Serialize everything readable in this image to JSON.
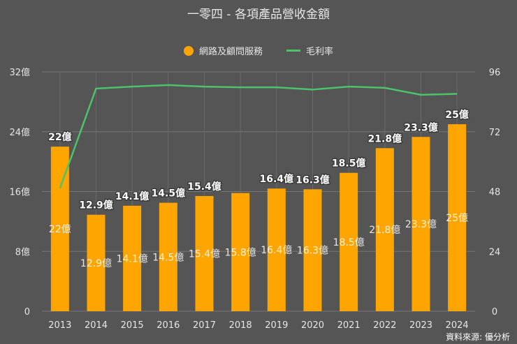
{
  "chart_data": {
    "type": "bar+line",
    "title": "一零四 - 各項產品營收金額",
    "categories": [
      "2013",
      "2014",
      "2015",
      "2016",
      "2017",
      "2018",
      "2019",
      "2020",
      "2021",
      "2022",
      "2023",
      "2024"
    ],
    "series": [
      {
        "name": "網路及顧問服務",
        "type": "bar",
        "axis": "left",
        "color": "#FFA500",
        "values": [
          22,
          12.9,
          14.1,
          14.5,
          15.4,
          15.8,
          16.4,
          16.3,
          18.5,
          21.8,
          23.3,
          25
        ],
        "labels_top": [
          "22億",
          "12.9億",
          "14.1億",
          "14.5億",
          "15.4億",
          "",
          "16.4億",
          "16.3億",
          "18.5億",
          "21.8億",
          "23.3億",
          "25億"
        ],
        "labels_inside": [
          "22億",
          "12.9億",
          "14.1億",
          "14.5億",
          "15.4億",
          "15.8億",
          "16.4億",
          "16.3億",
          "18.5億",
          "21.8億",
          "23.3億",
          "25億"
        ]
      },
      {
        "name": "毛利率",
        "type": "line",
        "axis": "right",
        "color": "#4CC36A",
        "values": [
          49.3,
          89.3,
          90.1,
          90.7,
          90.1,
          89.8,
          89.8,
          88.9,
          90.1,
          89.6,
          86.8,
          87.2
        ]
      }
    ],
    "left_axis": {
      "range": [
        0,
        32
      ],
      "ticks": [
        "0",
        "8億",
        "16億",
        "24億",
        "32億"
      ]
    },
    "right_axis": {
      "range": [
        0,
        96
      ],
      "ticks": [
        "0",
        "24",
        "48",
        "72",
        "96"
      ]
    },
    "grid": true,
    "legend": "top-center"
  },
  "source": "資料來源: 優分析"
}
